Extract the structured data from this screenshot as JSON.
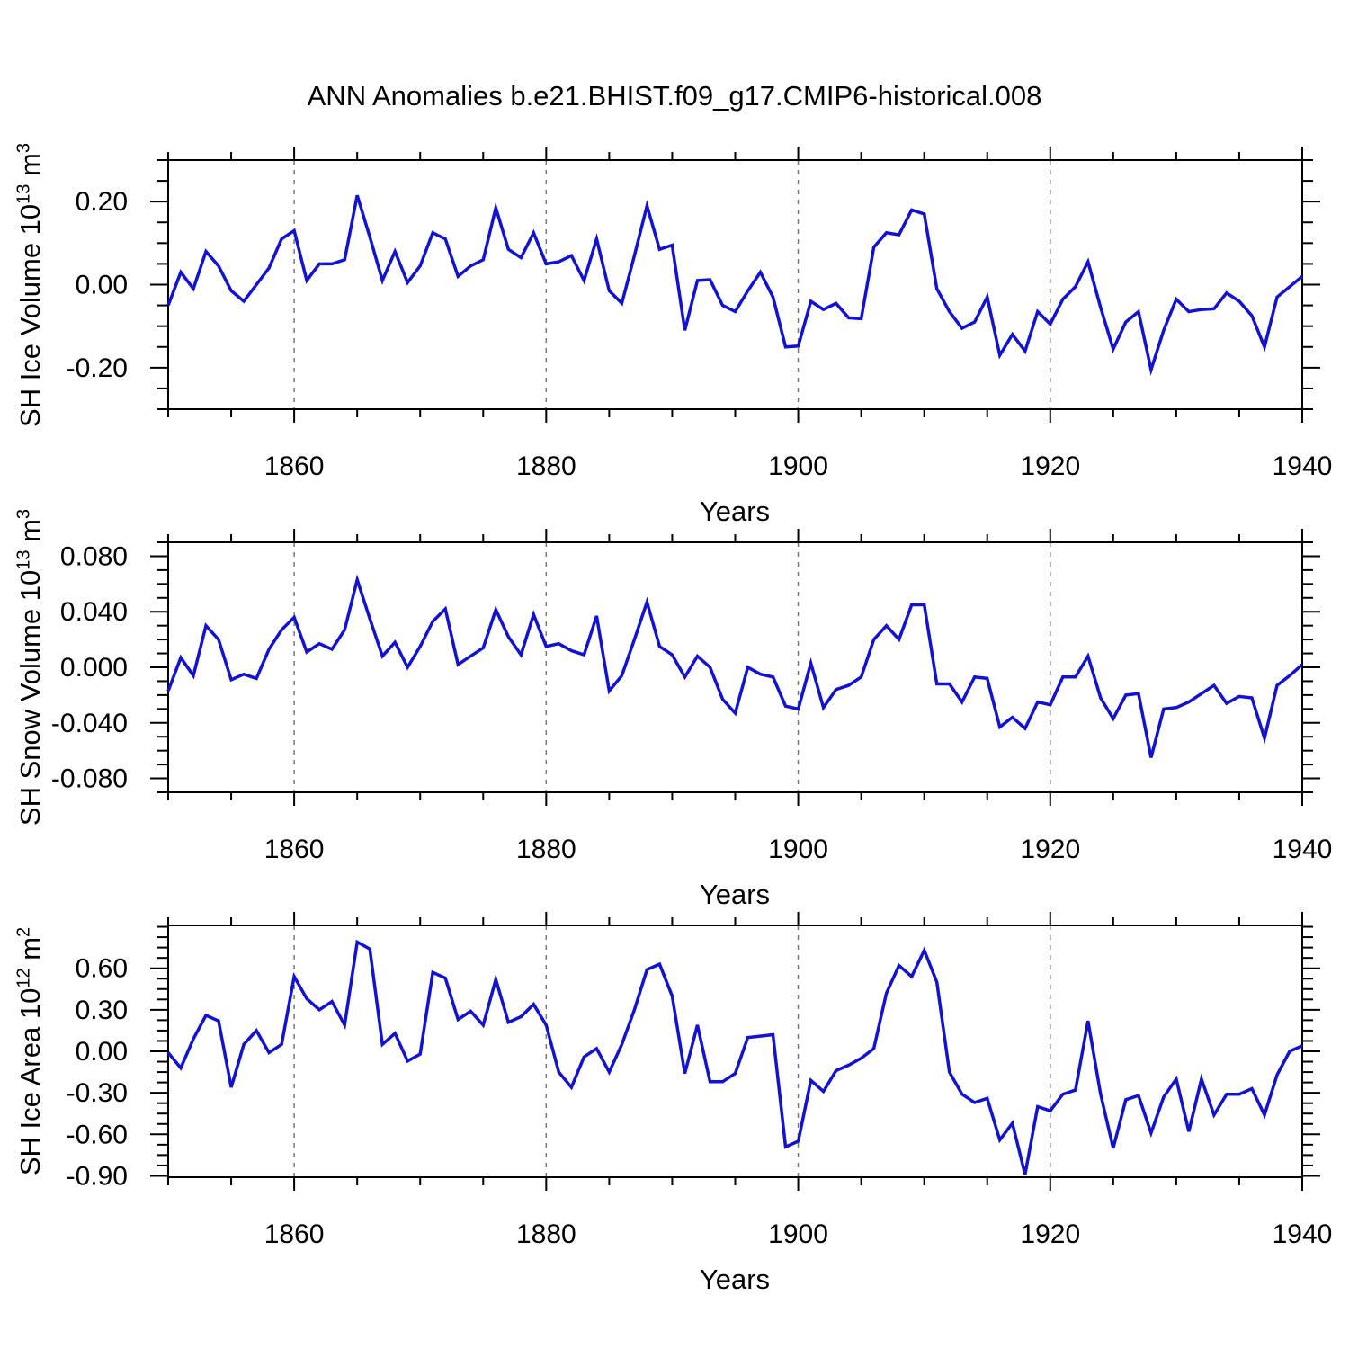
{
  "title": "ANN Anomalies b.e21.BHIST.f09_g17.CMIP6-historical.008",
  "colors": {
    "line": "#1212d2",
    "grid": "#777777",
    "axis": "#000000"
  },
  "chart_data": [
    {
      "type": "line",
      "name": "sh-ice-volume",
      "ylabel": {
        "prefix": "SH Ice Volume 10",
        "exp": "13",
        "unit": " m",
        "unit_exp": "3"
      },
      "xlabel": "Years",
      "x_start": 1850,
      "x_end": 1940,
      "x_step": 1,
      "x_major_ticks": [
        1860,
        1880,
        1900,
        1920,
        1940
      ],
      "x_major_labels": [
        "1860",
        "1880",
        "1900",
        "1920",
        "1940"
      ],
      "x_minor_step": 5,
      "x_gridlines": [
        1860,
        1880,
        1900,
        1920
      ],
      "grid_dashed": true,
      "legend": "none",
      "ylim": [
        -0.3,
        0.3
      ],
      "y_minor_step": 0.05,
      "yticks": [
        {
          "v": 0.2,
          "label": "0.20"
        },
        {
          "v": 0.0,
          "label": "0.00"
        },
        {
          "v": -0.2,
          "label": "-0.20"
        }
      ],
      "values": [
        -0.05,
        0.03,
        -0.01,
        0.08,
        0.045,
        -0.015,
        -0.04,
        0.0,
        0.04,
        0.11,
        0.13,
        0.01,
        0.05,
        0.05,
        0.06,
        0.215,
        0.115,
        0.01,
        0.08,
        0.005,
        0.045,
        0.125,
        0.11,
        0.02,
        0.045,
        0.06,
        0.185,
        0.085,
        0.065,
        0.125,
        0.05,
        0.055,
        0.07,
        0.01,
        0.11,
        -0.015,
        -0.045,
        0.07,
        0.19,
        0.085,
        0.095,
        -0.11,
        0.01,
        0.012,
        -0.05,
        -0.065,
        -0.015,
        0.03,
        -0.03,
        -0.15,
        -0.148,
        -0.04,
        -0.06,
        -0.045,
        -0.08,
        -0.082,
        0.09,
        0.125,
        0.12,
        0.18,
        0.17,
        -0.01,
        -0.065,
        -0.105,
        -0.09,
        -0.03,
        -0.17,
        -0.12,
        -0.16,
        -0.065,
        -0.095,
        -0.035,
        -0.005,
        0.055,
        -0.055,
        -0.155,
        -0.09,
        -0.065,
        -0.205,
        -0.11,
        -0.035,
        -0.065,
        -0.06,
        -0.058,
        -0.02,
        -0.04,
        -0.075,
        -0.15,
        -0.03,
        -0.005,
        0.02
      ]
    },
    {
      "type": "line",
      "name": "sh-snow-volume",
      "ylabel": {
        "prefix": "SH Snow Volume 10",
        "exp": "13",
        "unit": " m",
        "unit_exp": "3"
      },
      "xlabel": "Years",
      "x_start": 1850,
      "x_end": 1940,
      "x_step": 1,
      "x_major_ticks": [
        1860,
        1880,
        1900,
        1920,
        1940
      ],
      "x_major_labels": [
        "1860",
        "1880",
        "1900",
        "1920",
        "1940"
      ],
      "x_minor_step": 5,
      "x_gridlines": [
        1860,
        1880,
        1900,
        1920
      ],
      "grid_dashed": true,
      "legend": "none",
      "ylim": [
        -0.09,
        0.09
      ],
      "y_minor_step": 0.01,
      "yticks": [
        {
          "v": 0.08,
          "label": "0.080"
        },
        {
          "v": 0.04,
          "label": "0.040"
        },
        {
          "v": 0.0,
          "label": "0.000"
        },
        {
          "v": -0.04,
          "label": "-0.040"
        },
        {
          "v": -0.08,
          "label": "-0.080"
        }
      ],
      "values": [
        -0.017,
        0.007,
        -0.006,
        0.03,
        0.02,
        -0.009,
        -0.005,
        -0.008,
        0.013,
        0.027,
        0.036,
        0.011,
        0.017,
        0.013,
        0.027,
        0.063,
        0.035,
        0.008,
        0.018,
        0.0,
        0.015,
        0.033,
        0.042,
        0.002,
        0.008,
        0.014,
        0.0415,
        0.022,
        0.009,
        0.038,
        0.015,
        0.017,
        0.012,
        0.009,
        0.037,
        -0.017,
        -0.006,
        0.02,
        0.047,
        0.015,
        0.009,
        -0.007,
        0.008,
        0.0,
        -0.023,
        -0.033,
        0.0,
        -0.005,
        -0.007,
        -0.028,
        -0.03,
        0.003,
        -0.029,
        -0.016,
        -0.013,
        -0.007,
        0.02,
        0.03,
        0.02,
        0.045,
        0.045,
        -0.012,
        -0.012,
        -0.025,
        -0.007,
        -0.008,
        -0.043,
        -0.036,
        -0.044,
        -0.025,
        -0.027,
        -0.007,
        -0.007,
        0.008,
        -0.022,
        -0.037,
        -0.02,
        -0.019,
        -0.065,
        -0.03,
        -0.029,
        -0.025,
        -0.019,
        -0.013,
        -0.026,
        -0.021,
        -0.022,
        -0.051,
        -0.013,
        -0.006,
        0.002
      ]
    },
    {
      "type": "line",
      "name": "sh-ice-area",
      "ylabel": {
        "prefix": "SH Ice Area 10",
        "exp": "12",
        "unit": " m",
        "unit_exp": "2"
      },
      "xlabel": "Years",
      "x_start": 1850,
      "x_end": 1940,
      "x_step": 1,
      "x_major_ticks": [
        1860,
        1880,
        1900,
        1920,
        1940
      ],
      "x_major_labels": [
        "1860",
        "1880",
        "1900",
        "1920",
        "1940"
      ],
      "x_minor_step": 5,
      "x_gridlines": [
        1860,
        1880,
        1900,
        1920
      ],
      "grid_dashed": true,
      "legend": "none",
      "ylim": [
        -0.91,
        0.91
      ],
      "y_minor_step": 0.075,
      "yticks": [
        {
          "v": 0.6,
          "label": "0.60"
        },
        {
          "v": 0.3,
          "label": "0.30"
        },
        {
          "v": 0.0,
          "label": "0.00"
        },
        {
          "v": -0.3,
          "label": "-0.30"
        },
        {
          "v": -0.6,
          "label": "-0.60"
        },
        {
          "v": -0.9,
          "label": "-0.90"
        }
      ],
      "values": [
        -0.01,
        -0.12,
        0.09,
        0.26,
        0.22,
        -0.26,
        0.05,
        0.15,
        -0.01,
        0.05,
        0.54,
        0.38,
        0.3,
        0.36,
        0.19,
        0.79,
        0.74,
        0.05,
        0.13,
        -0.07,
        -0.02,
        0.57,
        0.53,
        0.23,
        0.29,
        0.19,
        0.52,
        0.21,
        0.25,
        0.34,
        0.19,
        -0.15,
        -0.26,
        -0.04,
        0.02,
        -0.15,
        0.05,
        0.3,
        0.59,
        0.63,
        0.4,
        -0.16,
        0.19,
        -0.22,
        -0.22,
        -0.16,
        0.1,
        0.11,
        0.12,
        -0.69,
        -0.65,
        -0.21,
        -0.29,
        -0.14,
        -0.1,
        -0.05,
        0.02,
        0.42,
        0.62,
        0.54,
        0.73,
        0.5,
        -0.15,
        -0.31,
        -0.37,
        -0.34,
        -0.64,
        -0.52,
        -0.89,
        -0.4,
        -0.43,
        -0.31,
        -0.28,
        0.22,
        -0.31,
        -0.7,
        -0.35,
        -0.32,
        -0.59,
        -0.33,
        -0.2,
        -0.58,
        -0.2,
        -0.46,
        -0.31,
        -0.31,
        -0.27,
        -0.46,
        -0.17,
        0.0,
        0.04
      ]
    }
  ]
}
